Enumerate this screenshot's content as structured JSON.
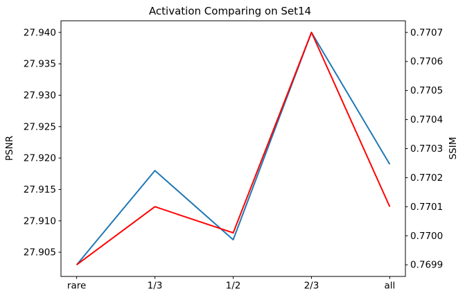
{
  "chart_data": {
    "type": "line",
    "title": "Activation Comparing on Set14",
    "categories": [
      "rare",
      "1/3",
      "1/2",
      "2/3",
      "all"
    ],
    "series": [
      {
        "name": "PSNR",
        "axis": "left",
        "color": "#1f77b4",
        "values": [
          27.903,
          27.918,
          27.907,
          27.94,
          27.919
        ]
      },
      {
        "name": "SSIM",
        "axis": "right",
        "color": "#ff0000",
        "values": [
          0.7699,
          0.7701,
          0.77001,
          0.7707,
          0.7701
        ]
      }
    ],
    "left_axis": {
      "label": "PSNR",
      "tick_labels": [
        "27.905",
        "27.910",
        "27.915",
        "27.920",
        "27.925",
        "27.930",
        "27.935",
        "27.940"
      ],
      "lim": [
        27.90115,
        27.94185
      ]
    },
    "right_axis": {
      "label": "SSIM",
      "tick_labels": [
        "0.7699",
        "0.7700",
        "0.7701",
        "0.7702",
        "0.7703",
        "0.7704",
        "0.7705",
        "0.7706",
        "0.7707"
      ],
      "lim": [
        0.76986,
        0.77074
      ]
    },
    "x_axis": {
      "lim": [
        -0.2,
        4.2
      ]
    },
    "legend": "none",
    "grid": false,
    "spine_color": "#000000"
  }
}
